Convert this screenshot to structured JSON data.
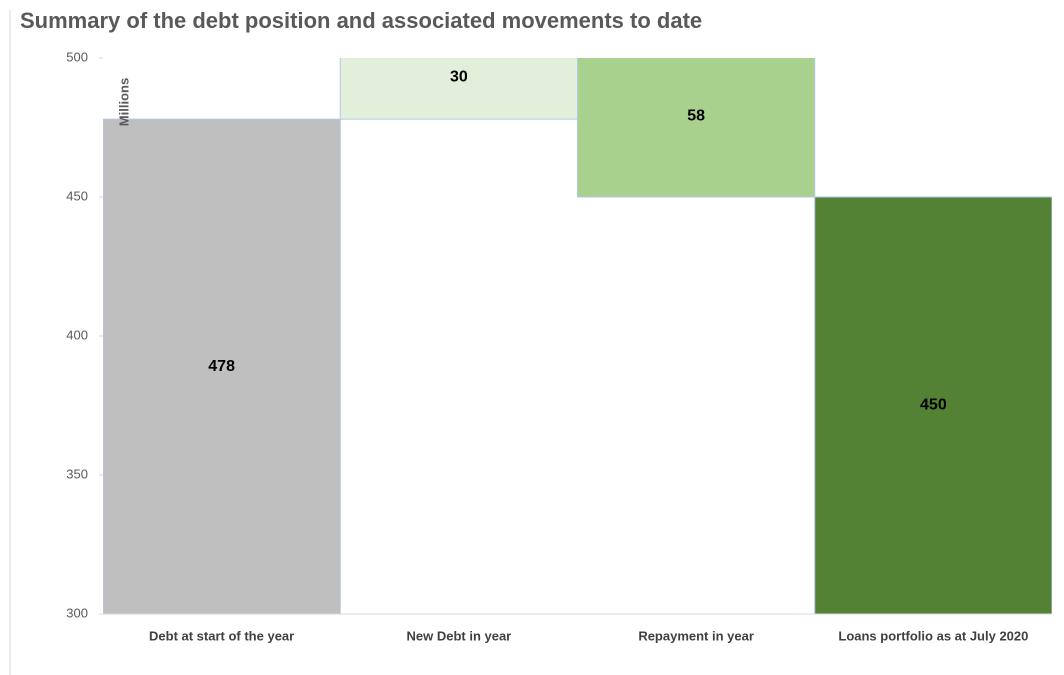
{
  "chart_data": {
    "type": "waterfall",
    "title": "Summary of the debt position and associated movements to date",
    "y_unit": "Millions",
    "categories": [
      "Debt at start of the year",
      "New Debt in year",
      "Repayment  in year",
      "Loans portfolio as at July 2020"
    ],
    "values": [
      478,
      30,
      58,
      450
    ],
    "measure": [
      "absolute",
      "increase",
      "decrease",
      "total"
    ],
    "colors": [
      "#bfbfbf",
      "#e2efda",
      "#a9d18e",
      "#548235"
    ],
    "ylim": [
      300,
      500
    ],
    "yticks": [
      300,
      350,
      400,
      450,
      500
    ]
  }
}
